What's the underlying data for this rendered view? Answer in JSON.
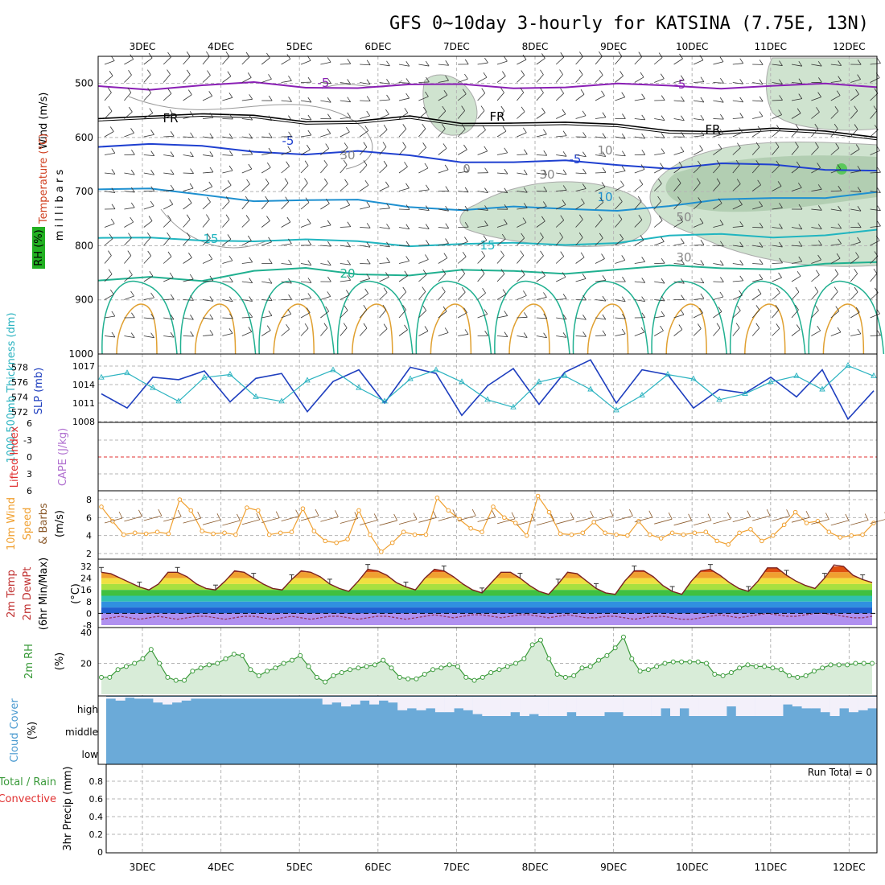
{
  "title": "GFS 0~10day 3-hourly for KATSINA (7.75E, 13N)",
  "date_labels": [
    "3DEC",
    "4DEC",
    "5DEC",
    "6DEC",
    "7DEC",
    "8DEC",
    "9DEC",
    "10DEC",
    "11DEC",
    "12DEC"
  ],
  "colors": {
    "grid": "#b5b5b5",
    "rh_fill": "#cfe3cf",
    "rh_fill_dark": "#9fbf9f",
    "slp": "#1f3fbf",
    "thickness": "#2bb3c0",
    "wind_speed": "#f0a030",
    "rh2m": "#3a9a3a",
    "cloud": "#6baad8",
    "dewpoint": "#a070e0"
  },
  "chart_data": [
    {
      "type": "line",
      "panel": "upper-air",
      "y_axis_label": "m i l l i b a r s",
      "left_labels": [
        "RH (%)",
        "Temperature (°C)",
        "Wind (m/s)"
      ],
      "y_ticks": [
        500,
        600,
        700,
        800,
        900,
        1000
      ],
      "y_range": [
        450,
        1000
      ],
      "contour_labels": [
        "-5",
        "-5",
        "FR",
        "FR",
        "FR",
        "-5",
        "-5",
        "10",
        "15",
        "15",
        "20",
        "30",
        "30",
        "50",
        "0",
        "10",
        "30"
      ],
      "series": [
        {
          "label": "-5",
          "color": "#8a1fb5",
          "values_mb": [
            505,
            506,
            505,
            503,
            505,
            504,
            506,
            505,
            504,
            505,
            506,
            505,
            504,
            505,
            506,
            505
          ]
        },
        {
          "label": "FR",
          "color": "#000000",
          "values_mb": [
            560,
            558,
            562,
            560,
            565,
            570,
            566,
            572,
            568,
            575,
            580,
            583,
            586,
            588,
            590,
            594
          ]
        },
        {
          "label": "-5",
          "color": "#1f40d0",
          "values_mb": [
            612,
            615,
            620,
            622,
            628,
            630,
            635,
            640,
            645,
            648,
            650,
            652,
            650,
            655,
            656,
            657
          ]
        },
        {
          "label": "10",
          "color": "#1e90d0",
          "values_mb": [
            695,
            700,
            705,
            712,
            718,
            720,
            725,
            730,
            732,
            735,
            730,
            725,
            720,
            712,
            706,
            702
          ]
        },
        {
          "label": "15",
          "color": "#20b5c0",
          "values_mb": [
            790,
            788,
            785,
            790,
            794,
            792,
            795,
            798,
            800,
            796,
            790,
            785,
            782,
            780,
            778,
            776
          ]
        },
        {
          "label": "20",
          "color": "#20b090",
          "values_mb": [
            870,
            855,
            860,
            850,
            845,
            848,
            852,
            850,
            848,
            846,
            844,
            842,
            840,
            838,
            836,
            835
          ]
        }
      ]
    },
    {
      "type": "line",
      "panel": "thickness-slp",
      "left_labels": [
        "1000-500mb Thickness (dm)",
        "SLP (mb)"
      ],
      "y_ticks_thickness": [
        572,
        574,
        576,
        578
      ],
      "y_ticks_slp": [
        1008,
        1011,
        1014,
        1017
      ],
      "series": [
        {
          "name": "SLP (mb)",
          "values": [
            1012.5,
            1010.2,
            1015.2,
            1014.8,
            1016.2,
            1011.2,
            1015.0,
            1015.8,
            1009.6,
            1014.5,
            1016.4,
            1011.0,
            1016.8,
            1015.8,
            1009.0,
            1013.8,
            1016.6,
            1010.8,
            1016.0,
            1018.0,
            1011.0,
            1016.4,
            1015.6,
            1010.2,
            1013.2,
            1012.6,
            1015.2,
            1012.0,
            1016.4,
            1008.4,
            1013.0
          ]
        },
        {
          "name": "1000-500mb Thickness (dm)",
          "values": [
            576.6,
            577.2,
            575.2,
            573.4,
            576.6,
            577.0,
            574.0,
            573.4,
            576.2,
            577.6,
            575.2,
            573.4,
            576.4,
            577.6,
            576.0,
            573.6,
            572.6,
            576.0,
            576.8,
            575.0,
            572.2,
            574.2,
            577.0,
            576.4,
            573.6,
            574.4,
            576.0,
            576.8,
            575.0,
            578.2,
            576.8
          ]
        }
      ]
    },
    {
      "type": "line",
      "panel": "lifted-index-cape",
      "left_labels": [
        "Lifted Index",
        "CAPE (J/kg)"
      ],
      "y_ticks": [
        6,
        3,
        0,
        -3,
        -6
      ],
      "series": [
        {
          "name": "Lifted Index",
          "values": []
        }
      ]
    },
    {
      "type": "line",
      "panel": "wind10m",
      "left_labels": [
        "10m Wind",
        "Speed",
        "& Barbs",
        "(m/s)"
      ],
      "y_ticks": [
        2,
        4,
        6,
        8
      ],
      "series": [
        {
          "name": "10m Wind Speed",
          "values": [
            7.2,
            5.6,
            4.1,
            4.3,
            4.2,
            4.4,
            4.2,
            8.0,
            6.8,
            4.5,
            4.2,
            4.3,
            4.1,
            7.1,
            6.8,
            4.1,
            4.3,
            4.4,
            7.0,
            4.5,
            3.4,
            3.2,
            3.6,
            6.8,
            4.1,
            2.2,
            3.2,
            4.4,
            4.1,
            4.1,
            8.2,
            6.8,
            5.8,
            4.8,
            4.4,
            7.2,
            6.0,
            5.4,
            4.0,
            8.4,
            6.6,
            4.2,
            4.1,
            4.3,
            5.5,
            4.3,
            4.1,
            4.0,
            5.6,
            4.1,
            3.7,
            4.3,
            4.1,
            4.3,
            4.4,
            3.4,
            3.0,
            4.3,
            4.7,
            3.4,
            4.0,
            5.2,
            6.6,
            5.4,
            5.6,
            4.4,
            3.8,
            4.0,
            4.1,
            5.4
          ]
        }
      ]
    },
    {
      "type": "area",
      "panel": "temp2m",
      "left_labels": [
        "2m Temp",
        "2m DewPt",
        "(6hr Min/Max)",
        "(°C)"
      ],
      "y_ticks": [
        -8,
        0,
        8,
        16,
        24,
        32
      ],
      "series": [
        {
          "name": "2m Temp",
          "values": [
            28,
            27,
            24,
            21,
            18,
            16,
            20,
            28,
            28,
            25,
            20,
            17,
            16,
            22,
            29,
            28,
            24,
            20,
            17,
            16,
            23,
            29,
            28,
            25,
            20,
            17,
            15,
            22,
            30,
            29,
            26,
            21,
            18,
            16,
            24,
            30,
            29,
            25,
            20,
            16,
            14,
            21,
            28,
            28,
            24,
            19,
            15,
            13,
            20,
            28,
            27,
            22,
            17,
            14,
            13,
            22,
            29,
            29,
            25,
            19,
            15,
            13,
            22,
            29,
            30,
            26,
            21,
            17,
            15,
            22,
            31,
            31,
            26,
            22,
            19,
            17,
            24,
            33,
            32,
            26,
            23,
            21
          ]
        },
        {
          "name": "2m DewPt",
          "values": [
            -4,
            -3,
            -2,
            -3,
            -4,
            -3,
            -2,
            -3,
            -4,
            -3,
            -2,
            -2,
            -3,
            -4,
            -3,
            -2,
            -2,
            -3,
            -4,
            -3,
            -2,
            -3,
            -4,
            -3,
            -2,
            -2,
            -3,
            -4,
            -3,
            -2,
            -2,
            -3,
            -4,
            -3,
            -2,
            -1,
            -2,
            -3,
            -2,
            -1,
            -1,
            -2,
            -3,
            -2,
            -1,
            -1,
            -2,
            -3,
            -2,
            -1,
            -2,
            -3,
            -3,
            -2,
            -2,
            -3,
            -4,
            -3,
            -2,
            -2,
            -3,
            -4,
            -4,
            -3,
            -2,
            -1,
            -2,
            -3,
            -2,
            -1,
            0,
            -1,
            -2,
            -2,
            -1,
            0,
            0,
            -1,
            -2,
            -3,
            -3,
            -2
          ]
        }
      ]
    },
    {
      "type": "area",
      "panel": "rh2m",
      "left_labels": [
        "2m RH",
        "(%)"
      ],
      "y_ticks": [
        20,
        40
      ],
      "series": [
        {
          "name": "2m RH",
          "values": [
            11,
            11,
            16,
            18,
            20,
            23,
            29,
            20,
            11,
            9,
            9,
            15,
            17,
            19,
            20,
            23,
            26,
            25,
            16,
            12,
            15,
            17,
            20,
            22,
            25,
            18,
            11,
            8,
            12,
            14,
            16,
            17,
            18,
            19,
            22,
            17,
            11,
            10,
            10,
            13,
            16,
            17,
            19,
            18,
            11,
            9,
            11,
            14,
            16,
            18,
            20,
            23,
            32,
            35,
            23,
            13,
            11,
            12,
            17,
            18,
            22,
            25,
            30,
            37,
            23,
            15,
            16,
            18,
            20,
            21,
            21,
            21,
            21,
            20,
            13,
            12,
            14,
            17,
            19,
            18,
            18,
            17,
            16,
            12,
            11,
            12,
            15,
            17,
            19,
            19,
            19,
            20,
            20,
            20
          ]
        }
      ]
    },
    {
      "type": "heatmap",
      "panel": "cloud-cover",
      "left_labels": [
        "Cloud Cover",
        "(%)"
      ],
      "levels": [
        "high",
        "middle",
        "low"
      ],
      "high_cover_pct": [
        90,
        80,
        95,
        90,
        90,
        70,
        60,
        70,
        80,
        90,
        90,
        90,
        90,
        90,
        90,
        90,
        90,
        90,
        90,
        90,
        90,
        90,
        90,
        60,
        70,
        50,
        60,
        80,
        60,
        80,
        70,
        30,
        40,
        30,
        40,
        20,
        20,
        40,
        30,
        10,
        0,
        0,
        0,
        20,
        0,
        10,
        0,
        0,
        0,
        20,
        0,
        0,
        0,
        20,
        20,
        0,
        0,
        0,
        0,
        40,
        0,
        40,
        0,
        0,
        0,
        0,
        50,
        0,
        0,
        0,
        0,
        0,
        60,
        50,
        40,
        40,
        20,
        0,
        40,
        20,
        30,
        40
      ]
    },
    {
      "type": "bar",
      "panel": "precip",
      "left_labels": [
        "Total / Rain",
        "Convective",
        "3hr Precip (mm)"
      ],
      "y_ticks": [
        0,
        0.2,
        0.4,
        0.6,
        0.8
      ],
      "annotation": "Run Total = 0",
      "series": [
        {
          "name": "3hr Precip",
          "values": []
        }
      ]
    }
  ]
}
